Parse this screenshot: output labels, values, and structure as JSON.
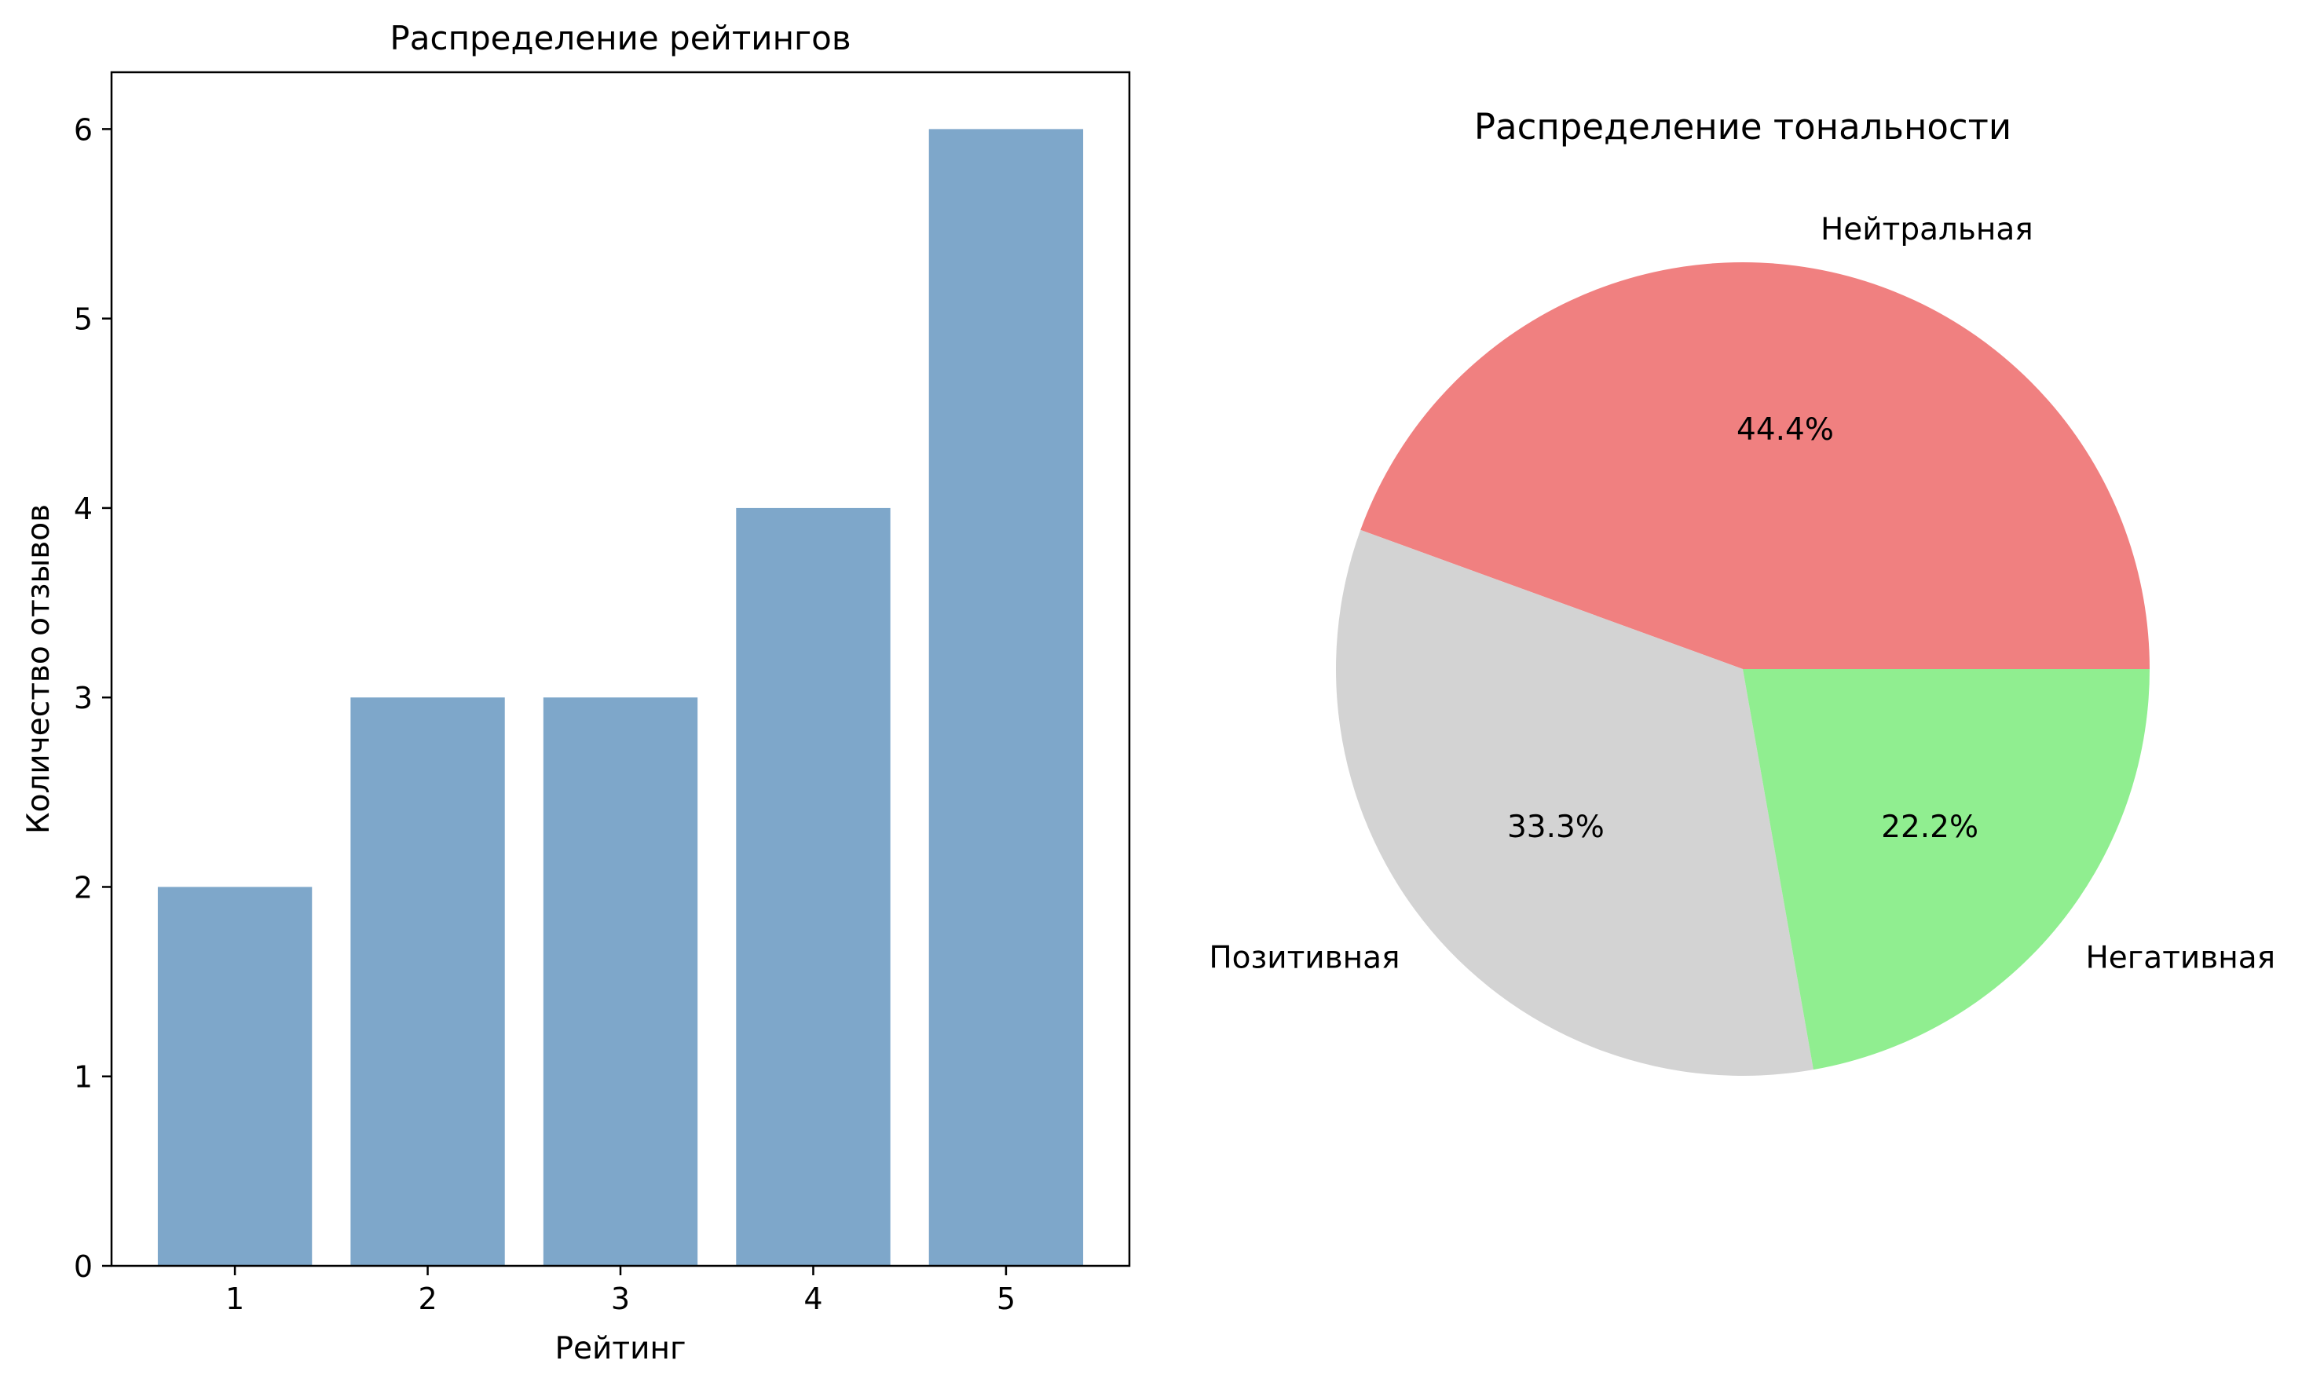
{
  "chart_data": [
    {
      "type": "bar",
      "title": "Распределение рейтингов",
      "xlabel": "Рейтинг",
      "ylabel": "Количество отзывов",
      "categories": [
        "1",
        "2",
        "3",
        "4",
        "5"
      ],
      "values": [
        2,
        3,
        3,
        4,
        6
      ],
      "ylim": [
        0,
        6.3
      ],
      "yticks": [
        0,
        1,
        2,
        3,
        4,
        5,
        6
      ],
      "color": "#7ea7ca",
      "grid": false
    },
    {
      "type": "pie",
      "title": "Распределение тональности",
      "startangle_deg": 0,
      "slices": [
        {
          "label": "Нейтральная",
          "value": 44.4,
          "pct_label": "44.4%",
          "color": "#f08080"
        },
        {
          "label": "Позитивная",
          "value": 33.3,
          "pct_label": "33.3%",
          "color": "#d3d3d3"
        },
        {
          "label": "Негативная",
          "value": 22.2,
          "pct_label": "22.2%",
          "color": "#90ee90"
        }
      ]
    }
  ]
}
